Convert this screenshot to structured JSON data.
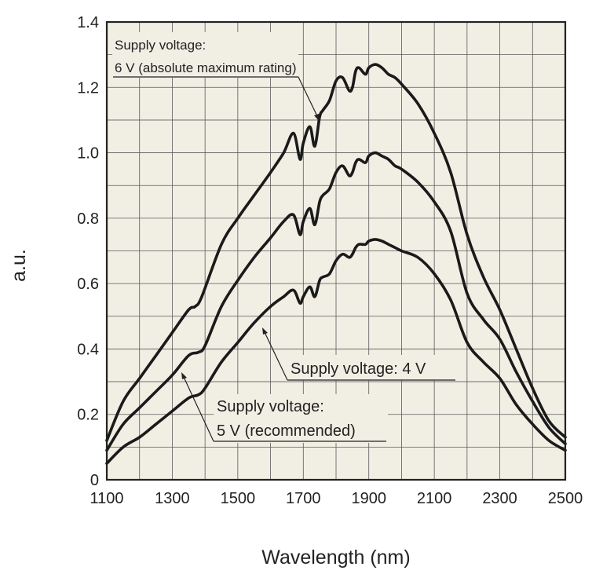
{
  "chart_data": {
    "type": "line",
    "title": "",
    "xlabel": "Wavelength (nm)",
    "ylabel": "a.u.",
    "xlim": [
      1100,
      2500
    ],
    "ylim": [
      0,
      1.4
    ],
    "grid": true,
    "x_ticks": [
      1100,
      1300,
      1500,
      1700,
      1900,
      2100,
      2300,
      2500
    ],
    "x_tick_labels": [
      "1100",
      "1300",
      "1500",
      "1700",
      "1900",
      "2100",
      "2300",
      "2500"
    ],
    "y_ticks": [
      0,
      0.2,
      0.4,
      0.6,
      0.8,
      1.0,
      1.2,
      1.4
    ],
    "y_tick_labels": [
      "0",
      "0.2",
      "0.4",
      "0.6",
      "0.8",
      "1.0",
      "1.2",
      "1.4"
    ],
    "series": [
      {
        "x": [
          1100,
          1150,
          1200,
          1250,
          1300,
          1350,
          1370,
          1390,
          1450,
          1500,
          1550,
          1600,
          1640,
          1670,
          1690,
          1700,
          1720,
          1735,
          1750,
          1760,
          1780,
          1800,
          1820,
          1840,
          1850,
          1860,
          1870,
          1890,
          1900,
          1920,
          1940,
          1960,
          1980,
          2000,
          2050,
          2100,
          2150,
          2200,
          2250,
          2300,
          2350,
          2400,
          2450,
          2500
        ],
        "y": [
          0.12,
          0.24,
          0.31,
          0.38,
          0.45,
          0.52,
          0.53,
          0.56,
          0.72,
          0.8,
          0.87,
          0.94,
          1.0,
          1.06,
          0.98,
          1.03,
          1.08,
          1.02,
          1.11,
          1.13,
          1.16,
          1.22,
          1.23,
          1.19,
          1.2,
          1.25,
          1.26,
          1.24,
          1.26,
          1.27,
          1.26,
          1.24,
          1.23,
          1.21,
          1.15,
          1.06,
          0.94,
          0.75,
          0.62,
          0.52,
          0.4,
          0.28,
          0.18,
          0.13
        ]
      },
      {
        "x": [
          1100,
          1150,
          1200,
          1250,
          1300,
          1350,
          1380,
          1400,
          1450,
          1500,
          1550,
          1600,
          1640,
          1670,
          1690,
          1700,
          1720,
          1735,
          1750,
          1760,
          1780,
          1800,
          1820,
          1840,
          1850,
          1860,
          1870,
          1890,
          1900,
          1920,
          1940,
          1960,
          1980,
          2000,
          2050,
          2100,
          2150,
          2200,
          2250,
          2300,
          2350,
          2400,
          2450,
          2500
        ],
        "y": [
          0.09,
          0.17,
          0.22,
          0.27,
          0.32,
          0.38,
          0.39,
          0.41,
          0.53,
          0.61,
          0.68,
          0.74,
          0.79,
          0.81,
          0.75,
          0.79,
          0.83,
          0.78,
          0.85,
          0.87,
          0.89,
          0.94,
          0.96,
          0.93,
          0.94,
          0.97,
          0.98,
          0.97,
          0.99,
          1.0,
          0.99,
          0.98,
          0.96,
          0.95,
          0.91,
          0.85,
          0.76,
          0.57,
          0.49,
          0.43,
          0.33,
          0.24,
          0.16,
          0.11
        ]
      },
      {
        "x": [
          1100,
          1150,
          1200,
          1250,
          1300,
          1350,
          1380,
          1400,
          1450,
          1500,
          1550,
          1600,
          1640,
          1670,
          1690,
          1700,
          1720,
          1735,
          1750,
          1760,
          1780,
          1800,
          1820,
          1840,
          1850,
          1860,
          1870,
          1890,
          1900,
          1920,
          1940,
          1960,
          1980,
          2000,
          2050,
          2100,
          2150,
          2200,
          2250,
          2300,
          2350,
          2400,
          2450,
          2500
        ],
        "y": [
          0.05,
          0.1,
          0.13,
          0.17,
          0.21,
          0.25,
          0.26,
          0.28,
          0.36,
          0.42,
          0.48,
          0.53,
          0.56,
          0.58,
          0.54,
          0.56,
          0.59,
          0.56,
          0.61,
          0.62,
          0.63,
          0.67,
          0.69,
          0.68,
          0.69,
          0.71,
          0.72,
          0.72,
          0.73,
          0.735,
          0.73,
          0.72,
          0.71,
          0.7,
          0.68,
          0.63,
          0.55,
          0.42,
          0.36,
          0.31,
          0.23,
          0.17,
          0.12,
          0.09
        ]
      }
    ],
    "annotations": [
      {
        "lines": [
          "Supply voltage:",
          "6 V (absolute maximum rating)"
        ]
      },
      {
        "lines": [
          "Supply voltage: 4 V"
        ]
      },
      {
        "lines": [
          "Supply voltage:",
          "5 V (recommended)"
        ]
      }
    ]
  }
}
